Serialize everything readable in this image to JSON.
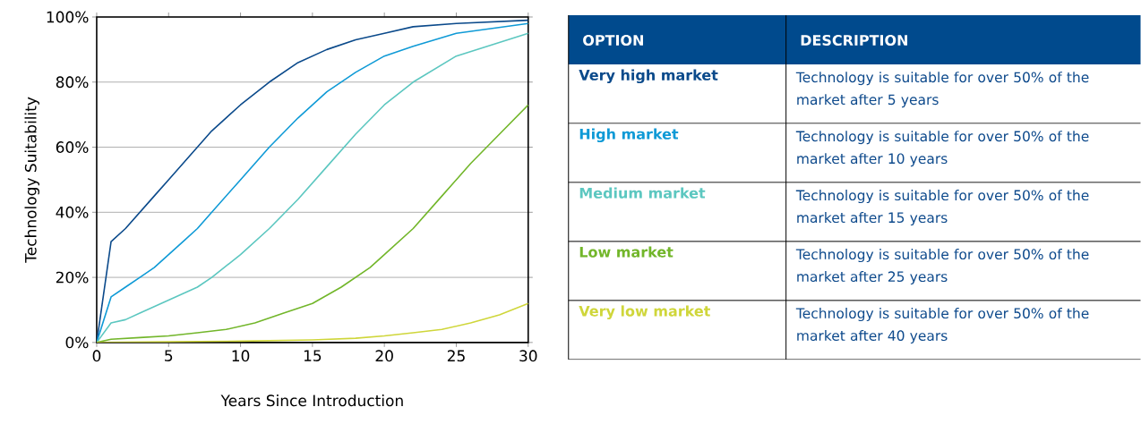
{
  "chart_data": {
    "type": "line",
    "xlabel": "Years Since Introduction",
    "ylabel": "Technology Suitability",
    "xlim": [
      0,
      30
    ],
    "xticks": [
      0,
      5,
      10,
      15,
      20,
      25,
      30
    ],
    "ylim": [
      0,
      100
    ],
    "yticks": [
      {
        "value": 0,
        "label": "0%"
      },
      {
        "value": 20,
        "label": "20%"
      },
      {
        "value": 40,
        "label": "40%"
      },
      {
        "value": 60,
        "label": "60%"
      },
      {
        "value": 80,
        "label": "80%"
      },
      {
        "value": 100,
        "label": "100%"
      }
    ],
    "grid": "y",
    "legend": "right",
    "legend_title": "OPTION",
    "annotations": [
      "DESCRIPTION",
      "Technology is suitable for over 50% of the market after 5 years",
      "Technology is suitable for over 50% of the market after 10 years",
      "Technology is suitable for over 50% of the market after 15 years",
      "Technology is suitable for over 50% of the market after 25 years",
      "Technology is suitable for over 50% of the market after 40 years"
    ],
    "series": [
      {
        "name": "Very high market",
        "color": "#0b4a8b",
        "x": [
          0,
          1,
          2,
          3,
          4,
          5,
          6,
          7,
          8,
          10,
          12,
          14,
          16,
          18,
          20,
          22,
          25,
          30
        ],
        "values": [
          0,
          31,
          35,
          40,
          45,
          50,
          55,
          60,
          65,
          73,
          80,
          86,
          90,
          93,
          95,
          97,
          98,
          99
        ]
      },
      {
        "name": "High market",
        "color": "#0f9ad6",
        "x": [
          0,
          1,
          2,
          3,
          4,
          5,
          6,
          7,
          8,
          10,
          12,
          14,
          16,
          18,
          20,
          22,
          25,
          30
        ],
        "values": [
          0,
          14,
          17,
          20,
          23,
          27,
          31,
          35,
          40,
          50,
          60,
          69,
          77,
          83,
          88,
          91,
          95,
          98
        ]
      },
      {
        "name": "Medium market",
        "color": "#5cc7c0",
        "x": [
          0,
          1,
          2,
          3,
          4,
          5,
          6,
          7,
          8,
          10,
          12,
          14,
          15,
          16,
          18,
          20,
          22,
          25,
          30
        ],
        "values": [
          0,
          6,
          7,
          9,
          11,
          13,
          15,
          17,
          20,
          27,
          35,
          44,
          49,
          54,
          64,
          73,
          80,
          88,
          95
        ]
      },
      {
        "name": "Low market",
        "color": "#72b62a",
        "x": [
          0,
          1,
          3,
          5,
          7,
          9,
          11,
          13,
          15,
          17,
          19,
          20,
          22,
          24,
          25,
          26,
          28,
          30
        ],
        "values": [
          0,
          1,
          1.5,
          2,
          3,
          4,
          6,
          9,
          12,
          17,
          23,
          27,
          35,
          45,
          50,
          55,
          64,
          73
        ]
      },
      {
        "name": "Very low market",
        "color": "#cfd63a",
        "x": [
          0,
          5,
          10,
          15,
          18,
          20,
          22,
          24,
          26,
          28,
          30
        ],
        "values": [
          0,
          0.2,
          0.4,
          0.8,
          1.3,
          2,
          3,
          4,
          6,
          8.5,
          12
        ]
      }
    ]
  }
}
